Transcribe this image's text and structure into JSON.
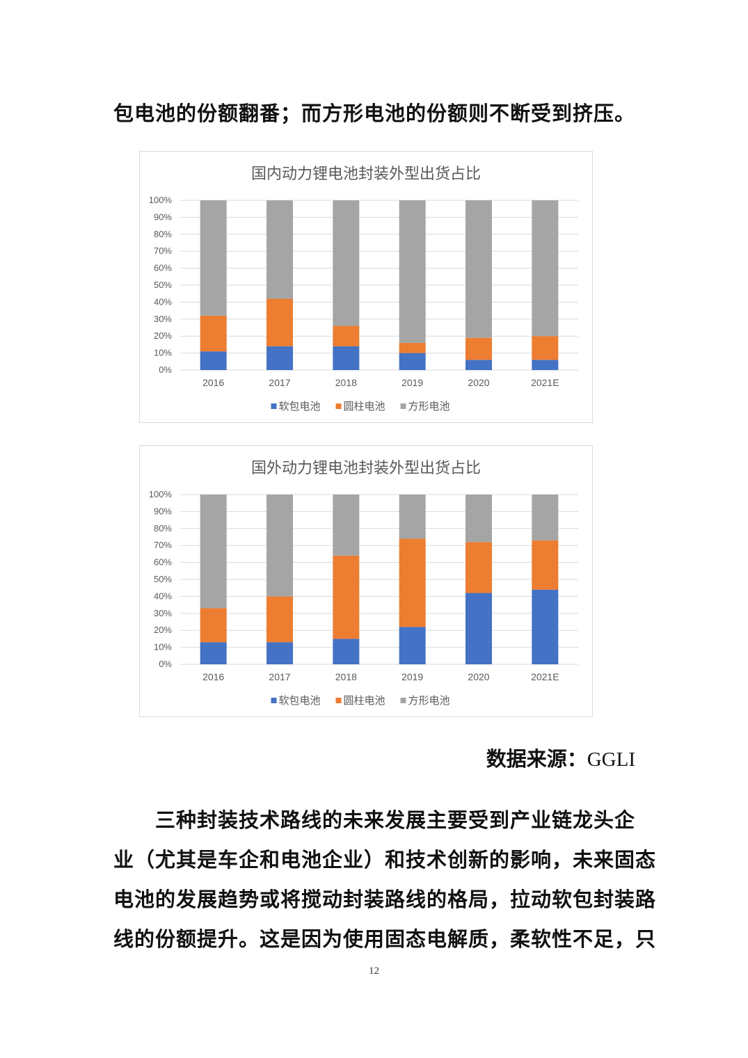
{
  "paragraph_top": "包电池的份额翻番；而方形电池的份额则不断受到挤压。",
  "source": {
    "label": "数据来源：",
    "name": "GGLI"
  },
  "paragraph_bottom": [
    "　　三种封装技术路线的未来发展主要受到产业链龙头企",
    "业（尤其是车企和电池企业）和技术创新的影响，未来固态",
    "电池的发展趋势或将搅动封装路线的格局，拉动软包封装路",
    "线的份额提升。这是因为使用固态电解质，柔软性不足，只"
  ],
  "page_number": "12",
  "colors": {
    "soft_pack": "#4472c4",
    "cylindrical": "#ed7d31",
    "prismatic": "#a5a5a5"
  },
  "chart_data": [
    {
      "type": "bar",
      "stacked": true,
      "title": "国内动力锂电池封装外型出货占比",
      "categories": [
        "2016",
        "2017",
        "2018",
        "2019",
        "2020",
        "2021E"
      ],
      "yticks": [
        "0%",
        "10%",
        "20%",
        "30%",
        "40%",
        "50%",
        "60%",
        "70%",
        "80%",
        "90%",
        "100%"
      ],
      "ylim": [
        0,
        100
      ],
      "grid": true,
      "legend_position": "bottom",
      "series": [
        {
          "name": "软包电池",
          "values": [
            11,
            14,
            14,
            10,
            6,
            6
          ]
        },
        {
          "name": "圆柱电池",
          "values": [
            21,
            28,
            12,
            6,
            13,
            14
          ]
        },
        {
          "name": "方形电池",
          "values": [
            68,
            58,
            74,
            84,
            81,
            80
          ]
        }
      ]
    },
    {
      "type": "bar",
      "stacked": true,
      "title": "国外动力锂电池封装外型出货占比",
      "categories": [
        "2016",
        "2017",
        "2018",
        "2019",
        "2020",
        "2021E"
      ],
      "yticks": [
        "0%",
        "10%",
        "20%",
        "30%",
        "40%",
        "50%",
        "60%",
        "70%",
        "80%",
        "90%",
        "100%"
      ],
      "ylim": [
        0,
        100
      ],
      "grid": true,
      "legend_position": "bottom",
      "series": [
        {
          "name": "软包电池",
          "values": [
            13,
            13,
            15,
            22,
            42,
            44
          ]
        },
        {
          "name": "圆柱电池",
          "values": [
            20,
            27,
            49,
            52,
            30,
            29
          ]
        },
        {
          "name": "方形电池",
          "values": [
            67,
            60,
            36,
            26,
            28,
            27
          ]
        }
      ]
    }
  ]
}
